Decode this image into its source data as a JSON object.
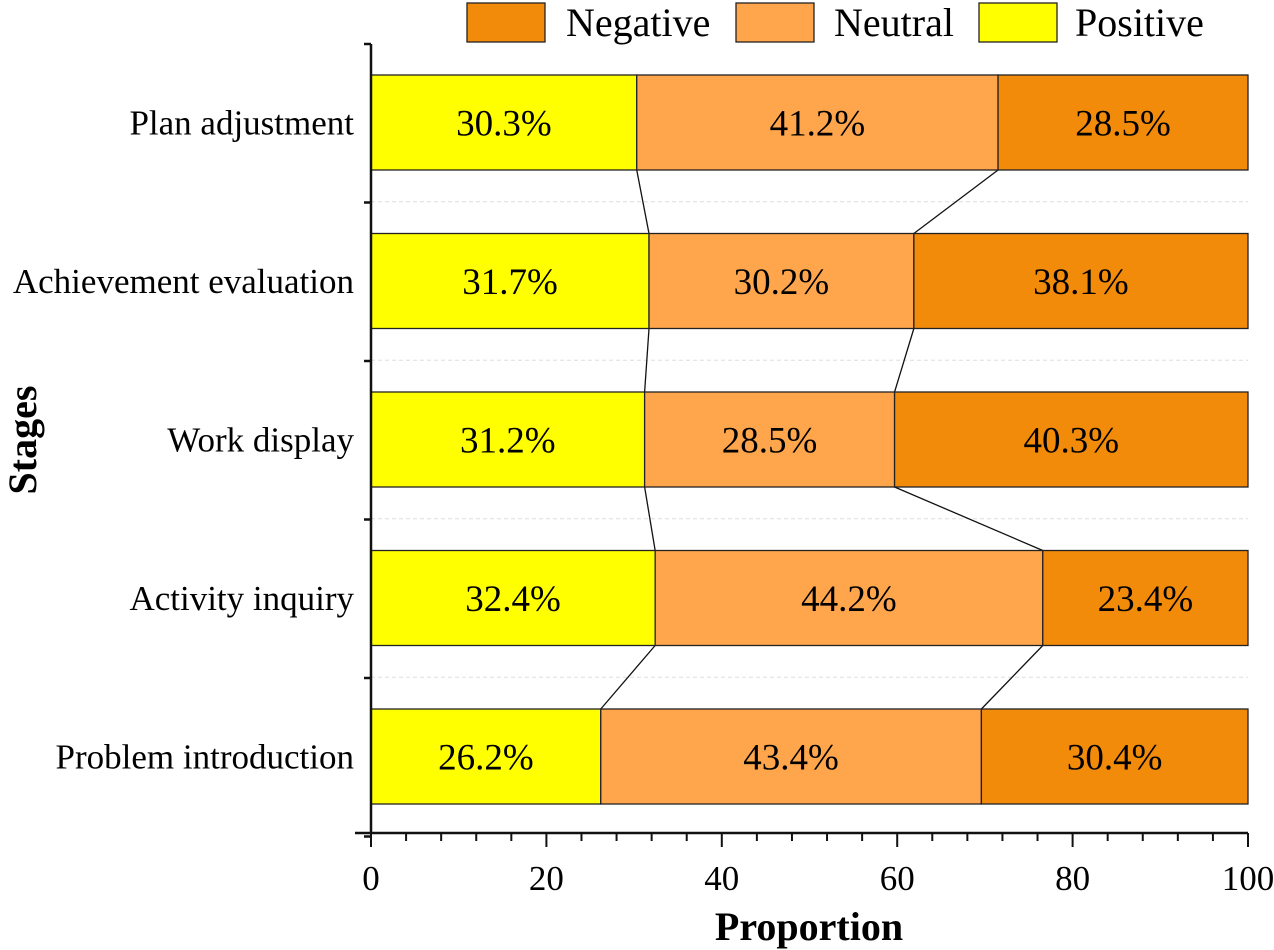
{
  "chart_data": {
    "type": "bar",
    "orientation": "horizontal",
    "stacked": true,
    "xlabel": "Proportion",
    "ylabel": "Stages",
    "xlim": [
      0,
      100
    ],
    "xticks": [
      "0",
      "20",
      "40",
      "60",
      "80",
      "100"
    ],
    "categories": [
      "Plan adjustment",
      "Achievement evaluation",
      "Work display",
      "Activity inquiry",
      "Problem introduction"
    ],
    "series": [
      {
        "name": "Positive",
        "color": "#FFFF00",
        "values": [
          30.3,
          31.7,
          31.2,
          32.4,
          26.2
        ],
        "labels": [
          "30.3%",
          "31.7%",
          "31.2%",
          "32.4%",
          "26.2%"
        ]
      },
      {
        "name": "Neutral",
        "color": "#FFA64D",
        "values": [
          41.2,
          30.2,
          28.5,
          44.2,
          43.4
        ],
        "labels": [
          "41.2%",
          "30.2%",
          "28.5%",
          "44.2%",
          "43.4%"
        ]
      },
      {
        "name": "Negative",
        "color": "#F28A0A",
        "values": [
          28.5,
          38.1,
          40.3,
          23.4,
          30.4
        ],
        "labels": [
          "28.5%",
          "38.1%",
          "40.3%",
          "23.4%",
          "30.4%"
        ]
      }
    ],
    "legend": {
      "position": "top",
      "order": [
        "Negative",
        "Neutral",
        "Positive"
      ]
    },
    "connector_lines": true,
    "grid": "dashed horizontal between categories"
  }
}
